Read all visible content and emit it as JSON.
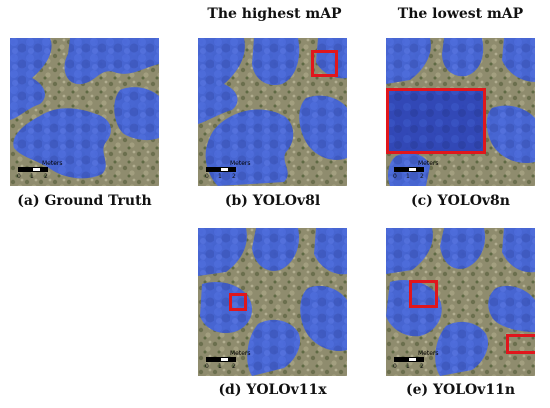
{
  "headers": {
    "highest": "The highest mAP",
    "lowest": "The lowest mAP"
  },
  "panels": [
    {
      "id": "a",
      "caption": "(a) Ground Truth"
    },
    {
      "id": "b",
      "caption": "(b) YOLOv8l"
    },
    {
      "id": "c",
      "caption": "(c) YOLOv8n"
    },
    {
      "id": "d",
      "caption": "(d) YOLOv11x"
    },
    {
      "id": "e",
      "caption": "(e) YOLOv11n"
    }
  ],
  "scalebar": {
    "units": "Meters",
    "tick0": "0",
    "tick1": "1",
    "tick2": "2"
  },
  "colors": {
    "canopy_mask": "#3f5fe0",
    "ground": "#8a8a6a",
    "highlight_box": "#e0161c"
  }
}
